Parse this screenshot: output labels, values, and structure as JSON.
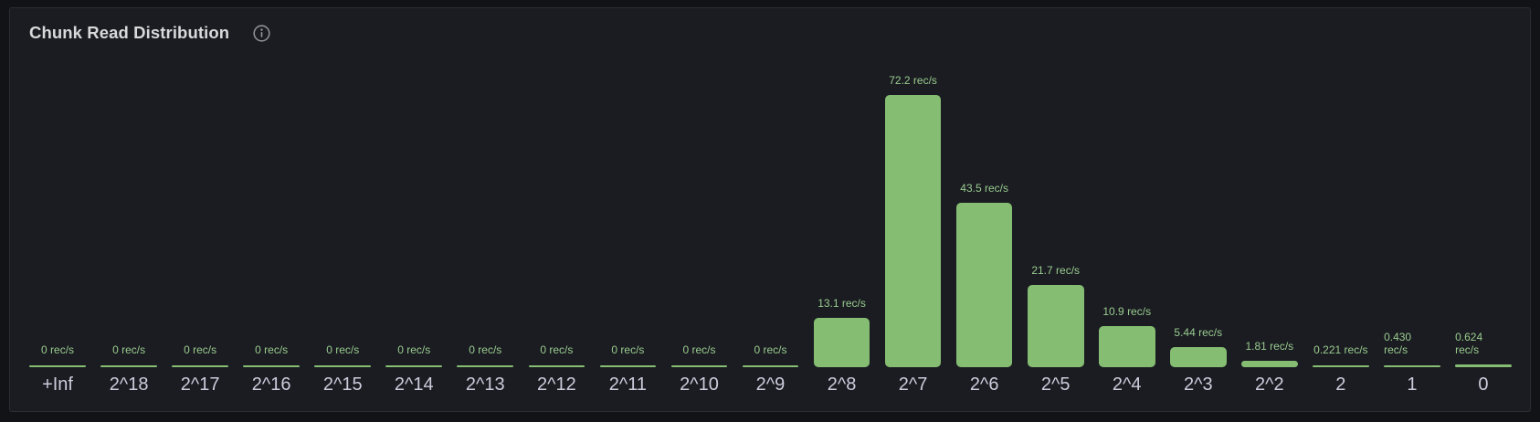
{
  "panel": {
    "title": "Chunk Read Distribution",
    "info_icon": "info-circle-icon"
  },
  "chart_data": {
    "type": "bar",
    "orientation": "vertical",
    "title": "Chunk Read Distribution",
    "unit": "rec/s",
    "xlabel": "",
    "ylabel": "",
    "ylim": [
      0,
      72.2
    ],
    "grid": false,
    "legend_position": "none",
    "categories": [
      "+Inf",
      "2^18",
      "2^17",
      "2^16",
      "2^15",
      "2^14",
      "2^13",
      "2^12",
      "2^11",
      "2^10",
      "2^9",
      "2^8",
      "2^7",
      "2^6",
      "2^5",
      "2^4",
      "2^3",
      "2^2",
      "2",
      "1",
      "0"
    ],
    "values": [
      0,
      0,
      0,
      0,
      0,
      0,
      0,
      0,
      0,
      0,
      0,
      13.1,
      72.2,
      43.5,
      21.7,
      10.9,
      5.44,
      1.81,
      0.221,
      0.43,
      0.624
    ],
    "value_labels": [
      "0 rec/s",
      "0 rec/s",
      "0 rec/s",
      "0 rec/s",
      "0 rec/s",
      "0 rec/s",
      "0 rec/s",
      "0 rec/s",
      "0 rec/s",
      "0 rec/s",
      "0 rec/s",
      "13.1 rec/s",
      "72.2 rec/s",
      "43.5 rec/s",
      "21.7 rec/s",
      "10.9 rec/s",
      "5.44 rec/s",
      "1.81 rec/s",
      "0.221 rec/s",
      "0.430\nrec/s",
      "0.624\nrec/s"
    ],
    "colors": {
      "bar": "#85be72",
      "value_label": "#9acb8f",
      "axis_label": "#ccccdc",
      "panel_background": "#1a1c21",
      "page_background": "#121317",
      "panel_border": "#2c2e34",
      "title_text": "#d8d9da"
    }
  }
}
